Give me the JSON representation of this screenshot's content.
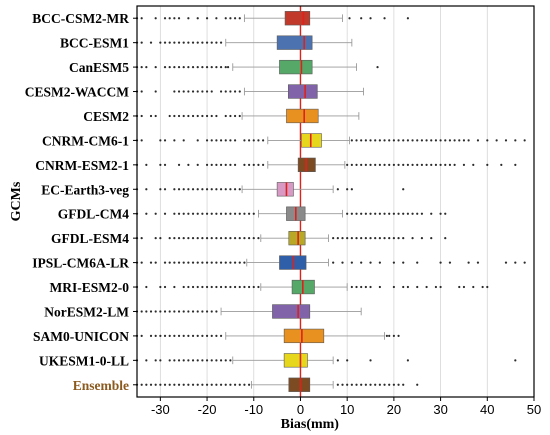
{
  "chart_data": {
    "type": "boxplot",
    "orientation": "horizontal",
    "xlabel": "Bias(mm)",
    "ylabel": "GCMs",
    "xlim": [
      -35,
      50
    ],
    "xticks": [
      -30,
      -20,
      -10,
      0,
      10,
      20,
      30,
      40,
      50
    ],
    "grid": "vertical",
    "reference_line": {
      "x": 0,
      "color": "#e0201b"
    },
    "median_color": "#e0201b",
    "models": [
      {
        "name": "BCC-CSM2-MR",
        "q1": -3.3,
        "median": 0.6,
        "q3": 2.0,
        "whisker_low": -12.0,
        "whisker_high": 9.0,
        "outliers_low": [
          -35,
          -34,
          -31,
          -29,
          -28,
          -27,
          -26,
          -24,
          -22,
          -20,
          -18,
          -16,
          -15,
          -14,
          -13
        ],
        "outliers_high": [
          10.5,
          13,
          15,
          18,
          23
        ],
        "color": "#c0392b",
        "label_color": "#000000"
      },
      {
        "name": "BCC-ESM1",
        "q1": -5.0,
        "median": 0.8,
        "q3": 2.5,
        "whisker_low": -16.0,
        "whisker_high": 11.0,
        "outliers_low": [
          -35,
          -34,
          -32,
          -30,
          -29,
          -28,
          -27,
          -26,
          -25,
          -24,
          -23,
          -22,
          -21,
          -20,
          -19,
          -18,
          -17
        ],
        "outliers_high": [],
        "color": "#4c72b0",
        "label_color": "#000000"
      },
      {
        "name": "CanESM5",
        "q1": -4.5,
        "median": 0.2,
        "q3": 2.5,
        "whisker_low": -14.5,
        "whisker_high": 12.0,
        "outliers_low": [
          -35,
          -34,
          -33,
          -31,
          -29,
          -28,
          -27,
          -26,
          -25,
          -24,
          -23,
          -22,
          -21,
          -20,
          -19,
          -18,
          -17,
          -16,
          -15.5
        ],
        "outliers_high": [
          16.5
        ],
        "color": "#55a868",
        "label_color": "#000000"
      },
      {
        "name": "CESM2-WACCM",
        "q1": -2.6,
        "median": 1.0,
        "q3": 3.6,
        "whisker_low": -12.0,
        "whisker_high": 13.5,
        "outliers_low": [
          -35,
          -34,
          -31,
          -27,
          -26,
          -25,
          -24,
          -23,
          -22,
          -21,
          -20,
          -19,
          -17,
          -16,
          -15,
          -14,
          -13
        ],
        "outliers_high": [],
        "color": "#8063a8",
        "label_color": "#000000"
      },
      {
        "name": "CESM2",
        "q1": -3.0,
        "median": 0.8,
        "q3": 3.8,
        "whisker_low": -12.5,
        "whisker_high": 12.5,
        "outliers_low": [
          -35,
          -34,
          -32,
          -31,
          -28,
          -27,
          -26,
          -25,
          -24,
          -23,
          -22,
          -21,
          -20,
          -19,
          -18,
          -16,
          -15,
          -14,
          -13
        ],
        "outliers_high": [],
        "color": "#e89020",
        "label_color": "#000000"
      },
      {
        "name": "CNRM-CM6-1",
        "q1": 0.2,
        "median": 2.2,
        "q3": 4.5,
        "whisker_low": -7.0,
        "whisker_high": 10.5,
        "outliers_low": [
          -35,
          -34,
          -30,
          -29,
          -27,
          -25,
          -22,
          -20,
          -19,
          -18,
          -17,
          -16,
          -15,
          -14,
          -12,
          -11,
          -10,
          -9,
          -8
        ],
        "outliers_high": [
          11,
          12,
          13,
          14,
          15,
          16,
          17,
          18,
          19,
          20,
          21,
          22,
          23,
          24,
          25,
          26,
          27,
          28,
          29,
          30,
          31,
          32,
          33,
          34,
          35,
          36,
          38,
          40,
          42,
          44,
          46,
          48
        ],
        "color": "#e6d61c",
        "label_color": "#000000"
      },
      {
        "name": "CNRM-ESM2-1",
        "q1": -0.5,
        "median": 1.2,
        "q3": 3.2,
        "whisker_low": -7.0,
        "whisker_high": 9.5,
        "outliers_low": [
          -35,
          -33,
          -30,
          -29,
          -26,
          -24,
          -22,
          -20,
          -19,
          -18,
          -17,
          -16,
          -15,
          -14,
          -12,
          -11,
          -10,
          -9,
          -8
        ],
        "outliers_high": [
          10,
          11,
          12,
          13,
          14,
          15,
          16,
          17,
          18,
          19,
          20,
          21,
          22,
          23,
          24,
          25,
          26,
          27,
          28,
          29,
          30,
          31,
          32,
          33,
          35,
          37,
          40,
          43,
          46
        ],
        "color": "#7d4b22",
        "label_color": "#000000"
      },
      {
        "name": "EC-Earth3-veg",
        "q1": -5.0,
        "median": -3.0,
        "q3": -1.5,
        "whisker_low": -12.5,
        "whisker_high": 7.0,
        "outliers_low": [
          -35,
          -33,
          -30,
          -29,
          -27,
          -26,
          -25,
          -24,
          -23,
          -22,
          -21,
          -20,
          -19,
          -18,
          -17,
          -16,
          -15,
          -14,
          -13
        ],
        "outliers_high": [
          8,
          10,
          11,
          22
        ],
        "color": "#d899c5",
        "label_color": "#000000"
      },
      {
        "name": "GFDL-CM4",
        "q1": -3.0,
        "median": -1.0,
        "q3": 1.0,
        "whisker_low": -9.0,
        "whisker_high": 9.0,
        "outliers_low": [
          -35,
          -33,
          -31,
          -29,
          -27,
          -26,
          -25,
          -24,
          -23,
          -22,
          -21,
          -20,
          -19,
          -18,
          -17,
          -16,
          -15,
          -14,
          -13,
          -12,
          -11,
          -10
        ],
        "outliers_high": [
          10,
          11,
          12,
          13,
          14,
          15,
          16,
          17,
          18,
          19,
          20,
          21,
          22,
          23,
          24,
          25,
          26,
          28,
          30,
          31
        ],
        "color": "#8a8a8a",
        "label_color": "#000000"
      },
      {
        "name": "GFDL-ESM4",
        "q1": -2.5,
        "median": -0.5,
        "q3": 1.0,
        "whisker_low": -8.5,
        "whisker_high": 6.0,
        "outliers_low": [
          -35,
          -34,
          -31,
          -30,
          -28,
          -27,
          -26,
          -25,
          -24,
          -23,
          -22,
          -21,
          -20,
          -19,
          -18,
          -17,
          -16,
          -15,
          -14,
          -13,
          -12,
          -11,
          -10,
          -9
        ],
        "outliers_high": [
          7,
          8,
          9,
          10,
          11,
          12,
          13,
          14,
          15,
          16,
          17,
          18,
          19,
          20,
          21,
          22,
          24,
          26,
          28,
          31
        ],
        "color": "#b8a826",
        "label_color": "#000000"
      },
      {
        "name": "IPSL-CM6A-LR",
        "q1": -4.5,
        "median": -1.5,
        "q3": 1.2,
        "whisker_low": -11.5,
        "whisker_high": 6.0,
        "outliers_low": [
          -35,
          -34,
          -32,
          -31,
          -29,
          -28,
          -27,
          -26,
          -25,
          -24,
          -23,
          -22,
          -21,
          -20,
          -19,
          -18,
          -17,
          -16,
          -15,
          -14,
          -13,
          -12
        ],
        "outliers_high": [
          7,
          9,
          11,
          13,
          15,
          17,
          20,
          22,
          25,
          30,
          32,
          36,
          38,
          44,
          46,
          48
        ],
        "color": "#2f5fa8",
        "label_color": "#000000"
      },
      {
        "name": "MRI-ESM2-0",
        "q1": -1.8,
        "median": 0.5,
        "q3": 3.0,
        "whisker_low": -8.5,
        "whisker_high": 10.0,
        "outliers_low": [
          -35,
          -33,
          -30,
          -29,
          -27,
          -25,
          -24,
          -23,
          -22,
          -21,
          -20,
          -19,
          -18,
          -17,
          -16,
          -15,
          -14,
          -13,
          -12,
          -11,
          -10,
          -9
        ],
        "outliers_high": [
          11,
          12,
          13,
          14,
          15,
          17,
          20,
          22,
          23,
          25,
          27,
          29,
          30,
          34,
          35,
          37,
          39,
          40
        ],
        "color": "#55a868",
        "label_color": "#000000"
      },
      {
        "name": "NorESM2-LM",
        "q1": -6.0,
        "median": -0.5,
        "q3": 2.0,
        "whisker_low": -17.0,
        "whisker_high": 13.0,
        "outliers_low": [
          -35,
          -34,
          -33,
          -32,
          -31,
          -30,
          -29,
          -28,
          -27,
          -26,
          -25,
          -24,
          -23,
          -22,
          -21,
          -20,
          -19,
          -18
        ],
        "outliers_high": [],
        "color": "#8063a8",
        "label_color": "#000000"
      },
      {
        "name": "SAM0-UNICON",
        "q1": -3.5,
        "median": 0.3,
        "q3": 5.0,
        "whisker_low": -16.0,
        "whisker_high": 18.0,
        "outliers_low": [
          -35,
          -34,
          -32,
          -31,
          -30,
          -29,
          -28,
          -27,
          -26,
          -25,
          -24,
          -23,
          -22,
          -21,
          -20,
          -19,
          -18,
          -17
        ],
        "outliers_high": [
          18.5,
          19,
          20,
          21
        ],
        "color": "#e89020",
        "label_color": "#000000"
      },
      {
        "name": "UKESM1-0-LL",
        "q1": -3.5,
        "median": 0.0,
        "q3": 1.5,
        "whisker_low": -14.5,
        "whisker_high": 7.0,
        "outliers_low": [
          -35,
          -33,
          -31,
          -30,
          -28,
          -27,
          -26,
          -25,
          -24,
          -23,
          -22,
          -21,
          -20,
          -19,
          -18,
          -17,
          -16,
          -15
        ],
        "outliers_high": [
          8,
          10,
          15,
          23,
          46
        ],
        "color": "#e6d61c",
        "label_color": "#000000"
      },
      {
        "name": "Ensemble",
        "q1": -2.5,
        "median": 0.0,
        "q3": 2.0,
        "whisker_low": -10.5,
        "whisker_high": 7.0,
        "outliers_low": [
          -35,
          -34,
          -33,
          -32,
          -31,
          -30,
          -29,
          -28,
          -27,
          -26,
          -25,
          -24,
          -23,
          -22,
          -21,
          -20,
          -19,
          -18,
          -17,
          -16,
          -15,
          -14,
          -13,
          -12,
          -11
        ],
        "outliers_high": [
          8,
          9,
          10,
          11,
          12,
          13,
          14,
          15,
          16,
          17,
          18,
          19,
          20,
          21,
          22,
          25
        ],
        "color": "#7d4b22",
        "label_color": "#8b5a1e"
      }
    ]
  }
}
